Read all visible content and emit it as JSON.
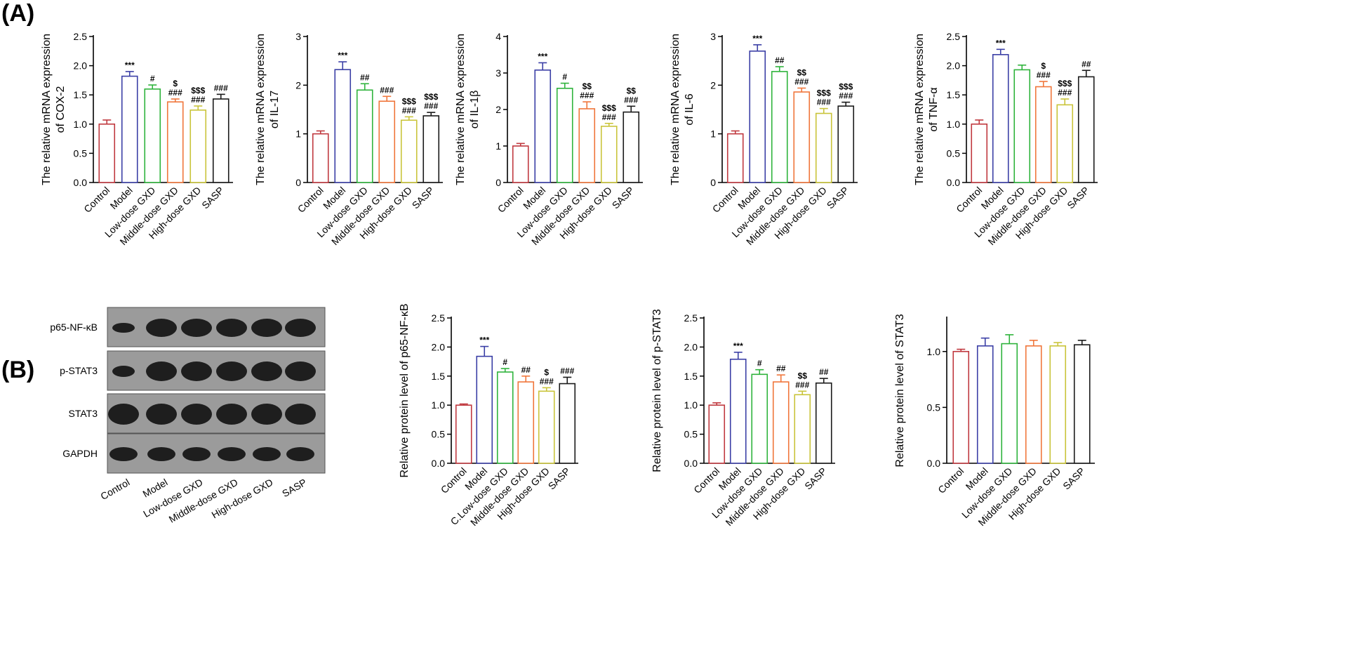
{
  "panels": {
    "a": "(A)",
    "b": "(B)"
  },
  "colors": [
    "#c0393f",
    "#3b3fa6",
    "#2fb33c",
    "#f0763b",
    "#c9c43a",
    "#1a1a1a"
  ],
  "blot": {
    "rows": [
      "p65-NF-κB",
      "p-STAT3",
      "STAT3",
      "GAPDH"
    ],
    "lanes": [
      "Control",
      "Model",
      "Low-dose GXD",
      "Middle-dose GXD",
      "High-dose GXD",
      "SASP"
    ]
  },
  "chart_data": [
    {
      "type": "bar",
      "ylabel": "The relative mRNA expression of COX-2",
      "categories": [
        "Control",
        "Model",
        "Low-dose GXD",
        "Middle-dose GXD",
        "High-dose GXD",
        "SASP"
      ],
      "values": [
        1.0,
        1.82,
        1.6,
        1.38,
        1.24,
        1.43
      ],
      "errors": [
        0.07,
        0.08,
        0.07,
        0.05,
        0.07,
        0.08
      ],
      "ylim": [
        0,
        2.5
      ],
      "yticks": [
        "0.0",
        "0.5",
        "1.0",
        "1.5",
        "2.0",
        "2.5"
      ],
      "annotations": [
        [],
        [
          "***"
        ],
        [
          "#"
        ],
        [
          "$",
          "###"
        ],
        [
          "$$$",
          "###"
        ],
        [
          "###"
        ]
      ]
    },
    {
      "type": "bar",
      "ylabel": "The relative mRNA expression of IL-17",
      "categories": [
        "Control",
        "Model",
        "Low-dose GXD",
        "Middle-dose GXD",
        "High-dose GXD",
        "SASP"
      ],
      "values": [
        1.0,
        2.32,
        1.9,
        1.67,
        1.28,
        1.37
      ],
      "errors": [
        0.06,
        0.16,
        0.13,
        0.1,
        0.07,
        0.07
      ],
      "ylim": [
        0,
        3
      ],
      "yticks": [
        "0",
        "1",
        "2",
        "3"
      ],
      "annotations": [
        [],
        [
          "***"
        ],
        [
          "##"
        ],
        [
          "###"
        ],
        [
          "$$$",
          "###"
        ],
        [
          "$$$",
          "###"
        ]
      ]
    },
    {
      "type": "bar",
      "ylabel": "The relative mRNA expression of IL-1β",
      "categories": [
        "Control",
        "Model",
        "Low-dose GXD",
        "Middle-dose GXD",
        "High-dose GXD",
        "SASP"
      ],
      "values": [
        1.0,
        3.08,
        2.58,
        2.02,
        1.54,
        1.93
      ],
      "errors": [
        0.07,
        0.2,
        0.14,
        0.19,
        0.08,
        0.16
      ],
      "ylim": [
        0,
        4
      ],
      "yticks": [
        "0",
        "1",
        "2",
        "3",
        "4"
      ],
      "annotations": [
        [],
        [
          "***"
        ],
        [
          "#"
        ],
        [
          "$$",
          "###"
        ],
        [
          "$$$",
          "###"
        ],
        [
          "$$",
          "###"
        ]
      ]
    },
    {
      "type": "bar",
      "ylabel": "The relative mRNA expression of IL-6",
      "categories": [
        "Control",
        "Model",
        "Low-dose GXD",
        "Middle-dose GXD",
        "High-dose GXD",
        "SASP"
      ],
      "values": [
        1.0,
        2.7,
        2.28,
        1.86,
        1.42,
        1.57
      ],
      "errors": [
        0.06,
        0.13,
        0.1,
        0.08,
        0.1,
        0.08
      ],
      "ylim": [
        0,
        3
      ],
      "yticks": [
        "0",
        "1",
        "2",
        "3"
      ],
      "annotations": [
        [],
        [
          "***"
        ],
        [
          "##"
        ],
        [
          "$$",
          "###"
        ],
        [
          "$$$",
          "###"
        ],
        [
          "$$$",
          "###"
        ]
      ]
    },
    {
      "type": "bar",
      "ylabel": "The relative mRNA expression of TNF-α",
      "categories": [
        "Control",
        "Model",
        "Low-dose GXD",
        "Middle-dose GXD",
        "High-dose GXD",
        "SASP"
      ],
      "values": [
        1.0,
        2.19,
        1.93,
        1.64,
        1.33,
        1.81
      ],
      "errors": [
        0.07,
        0.09,
        0.08,
        0.09,
        0.1,
        0.11
      ],
      "ylim": [
        0,
        2.5
      ],
      "yticks": [
        "0.0",
        "0.5",
        "1.0",
        "1.5",
        "2.0",
        "2.5"
      ],
      "annotations": [
        [],
        [
          "***"
        ],
        [],
        [
          "$",
          "###"
        ],
        [
          "$$$",
          "###"
        ],
        [
          "##"
        ]
      ]
    },
    {
      "type": "bar",
      "ylabel": "Relative protein level of p65-NF-κB",
      "categories": [
        "Control",
        "Model",
        "C.Low-dose GXD",
        "Middle-dose GXD",
        "High-dose GXD",
        "SASP"
      ],
      "values": [
        1.0,
        1.84,
        1.57,
        1.4,
        1.24,
        1.37
      ],
      "errors": [
        0.02,
        0.17,
        0.06,
        0.1,
        0.06,
        0.11
      ],
      "ylim": [
        0,
        2.5
      ],
      "yticks": [
        "0.0",
        "0.5",
        "1.0",
        "1.5",
        "2.0",
        "2.5"
      ],
      "annotations": [
        [],
        [
          "***"
        ],
        [
          "#"
        ],
        [
          "##"
        ],
        [
          "$",
          "###"
        ],
        [
          "###"
        ]
      ]
    },
    {
      "type": "bar",
      "ylabel": "Relative protein level of p-STAT3",
      "categories": [
        "Control",
        "Model",
        "Low-dose GXD",
        "Middle-dose GXD",
        "High-dose GXD",
        "SASP"
      ],
      "values": [
        1.0,
        1.79,
        1.53,
        1.4,
        1.18,
        1.38
      ],
      "errors": [
        0.04,
        0.12,
        0.08,
        0.12,
        0.06,
        0.08
      ],
      "ylim": [
        0,
        2.5
      ],
      "yticks": [
        "0.0",
        "0.5",
        "1.0",
        "1.5",
        "2.0",
        "2.5"
      ],
      "annotations": [
        [],
        [
          "***"
        ],
        [
          "#"
        ],
        [
          "##"
        ],
        [
          "$$",
          "###"
        ],
        [
          "##"
        ]
      ]
    },
    {
      "type": "bar",
      "ylabel": "Relative protein level of STAT3",
      "categories": [
        "Control",
        "Model",
        "Low-dose GXD",
        "Middle-dose GXD",
        "High-dose GXD",
        "SASP"
      ],
      "values": [
        1.0,
        1.05,
        1.07,
        1.05,
        1.05,
        1.06
      ],
      "errors": [
        0.02,
        0.07,
        0.08,
        0.05,
        0.03,
        0.04
      ],
      "ylim": [
        0,
        1.3
      ],
      "yticks": [
        "0.0",
        "0.5",
        "1.0",
        "1.5"
      ],
      "annotations": [
        [],
        [],
        [],
        [],
        [],
        []
      ]
    }
  ]
}
